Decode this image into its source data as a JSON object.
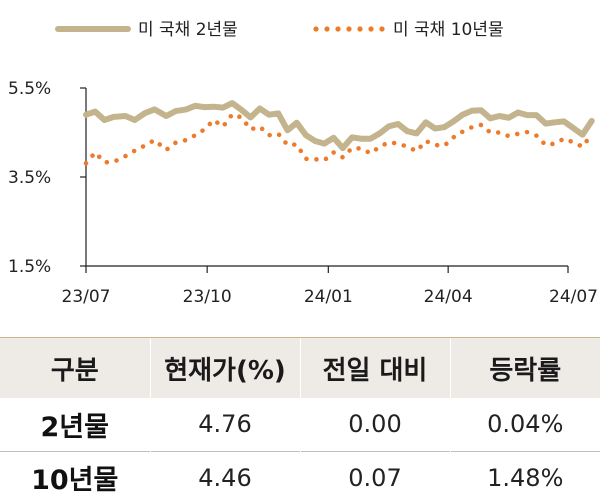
{
  "chart_data": {
    "type": "line",
    "x_ticks": [
      "23/07",
      "23/10",
      "24/01",
      "24/04",
      "24/07"
    ],
    "y_ticks": [
      "5.5%",
      "3.5%",
      "1.5%"
    ],
    "ylim": [
      1.5,
      5.5
    ],
    "legend_position": "top",
    "series": [
      {
        "name": "미 국채 2년물",
        "style": "solid",
        "color": "#c4b48e",
        "points": [
          [
            "2023-07-01",
            4.9
          ],
          [
            "2023-07-08",
            4.97
          ],
          [
            "2023-07-15",
            4.78
          ],
          [
            "2023-07-22",
            4.85
          ],
          [
            "2023-07-31",
            4.87
          ],
          [
            "2023-08-07",
            4.78
          ],
          [
            "2023-08-15",
            4.94
          ],
          [
            "2023-08-22",
            5.02
          ],
          [
            "2023-08-31",
            4.87
          ],
          [
            "2023-09-07",
            4.98
          ],
          [
            "2023-09-15",
            5.02
          ],
          [
            "2023-09-22",
            5.1
          ],
          [
            "2023-09-29",
            5.07
          ],
          [
            "2023-10-06",
            5.08
          ],
          [
            "2023-10-13",
            5.06
          ],
          [
            "2023-10-20",
            5.16
          ],
          [
            "2023-10-27",
            5.01
          ],
          [
            "2023-11-03",
            4.84
          ],
          [
            "2023-11-10",
            5.04
          ],
          [
            "2023-11-17",
            4.9
          ],
          [
            "2023-11-24",
            4.93
          ],
          [
            "2023-12-01",
            4.55
          ],
          [
            "2023-12-08",
            4.72
          ],
          [
            "2023-12-15",
            4.44
          ],
          [
            "2023-12-22",
            4.31
          ],
          [
            "2023-12-29",
            4.25
          ],
          [
            "2024-01-05",
            4.38
          ],
          [
            "2024-01-12",
            4.15
          ],
          [
            "2024-01-19",
            4.39
          ],
          [
            "2024-01-26",
            4.36
          ],
          [
            "2024-02-02",
            4.36
          ],
          [
            "2024-02-09",
            4.48
          ],
          [
            "2024-02-16",
            4.64
          ],
          [
            "2024-02-23",
            4.69
          ],
          [
            "2024-03-01",
            4.53
          ],
          [
            "2024-03-08",
            4.48
          ],
          [
            "2024-03-15",
            4.73
          ],
          [
            "2024-03-22",
            4.59
          ],
          [
            "2024-03-29",
            4.62
          ],
          [
            "2024-04-05",
            4.75
          ],
          [
            "2024-04-12",
            4.9
          ],
          [
            "2024-04-19",
            4.99
          ],
          [
            "2024-04-26",
            5.0
          ],
          [
            "2024-05-03",
            4.82
          ],
          [
            "2024-05-10",
            4.87
          ],
          [
            "2024-05-17",
            4.83
          ],
          [
            "2024-05-24",
            4.95
          ],
          [
            "2024-05-31",
            4.89
          ],
          [
            "2024-06-07",
            4.89
          ],
          [
            "2024-06-14",
            4.7
          ],
          [
            "2024-06-21",
            4.73
          ],
          [
            "2024-06-28",
            4.75
          ],
          [
            "2024-07-05",
            4.6
          ],
          [
            "2024-07-12",
            4.45
          ],
          [
            "2024-07-19",
            4.76
          ]
        ]
      },
      {
        "name": "미 국채 10년물",
        "style": "dotted",
        "color": "#ee7b2c",
        "points": [
          [
            "2023-07-01",
            3.81
          ],
          [
            "2023-07-08",
            4.05
          ],
          [
            "2023-07-15",
            3.83
          ],
          [
            "2023-07-22",
            3.84
          ],
          [
            "2023-07-31",
            3.97
          ],
          [
            "2023-08-07",
            4.09
          ],
          [
            "2023-08-15",
            4.21
          ],
          [
            "2023-08-22",
            4.33
          ],
          [
            "2023-08-31",
            4.11
          ],
          [
            "2023-09-07",
            4.27
          ],
          [
            "2023-09-15",
            4.33
          ],
          [
            "2023-09-22",
            4.44
          ],
          [
            "2023-09-29",
            4.57
          ],
          [
            "2023-10-06",
            4.78
          ],
          [
            "2023-10-13",
            4.63
          ],
          [
            "2023-10-20",
            4.91
          ],
          [
            "2023-10-27",
            4.84
          ],
          [
            "2023-11-03",
            4.57
          ],
          [
            "2023-11-10",
            4.63
          ],
          [
            "2023-11-17",
            4.44
          ],
          [
            "2023-11-24",
            4.47
          ],
          [
            "2023-12-01",
            4.22
          ],
          [
            "2023-12-08",
            4.23
          ],
          [
            "2023-12-15",
            3.91
          ],
          [
            "2023-12-22",
            3.9
          ],
          [
            "2023-12-29",
            3.88
          ],
          [
            "2024-01-05",
            4.05
          ],
          [
            "2024-01-12",
            3.94
          ],
          [
            "2024-01-19",
            4.15
          ],
          [
            "2024-01-26",
            4.14
          ],
          [
            "2024-02-02",
            4.03
          ],
          [
            "2024-02-09",
            4.18
          ],
          [
            "2024-02-16",
            4.28
          ],
          [
            "2024-02-23",
            4.25
          ],
          [
            "2024-03-01",
            4.18
          ],
          [
            "2024-03-08",
            4.08
          ],
          [
            "2024-03-15",
            4.31
          ],
          [
            "2024-03-22",
            4.22
          ],
          [
            "2024-03-29",
            4.2
          ],
          [
            "2024-04-05",
            4.39
          ],
          [
            "2024-04-12",
            4.52
          ],
          [
            "2024-04-19",
            4.62
          ],
          [
            "2024-04-26",
            4.67
          ],
          [
            "2024-05-03",
            4.5
          ],
          [
            "2024-05-10",
            4.5
          ],
          [
            "2024-05-17",
            4.42
          ],
          [
            "2024-05-24",
            4.47
          ],
          [
            "2024-05-31",
            4.51
          ],
          [
            "2024-06-07",
            4.43
          ],
          [
            "2024-06-14",
            4.22
          ],
          [
            "2024-06-21",
            4.25
          ],
          [
            "2024-06-28",
            4.36
          ],
          [
            "2024-07-05",
            4.28
          ],
          [
            "2024-07-12",
            4.18
          ],
          [
            "2024-07-19",
            4.46
          ]
        ]
      }
    ]
  },
  "table": {
    "headers": [
      "구분",
      "현재가(%)",
      "전일 대비",
      "등락률"
    ],
    "rows": [
      [
        "2년물",
        "4.76",
        "0.00",
        "0.04%"
      ],
      [
        "10년물",
        "4.46",
        "0.07",
        "1.48%"
      ]
    ]
  }
}
